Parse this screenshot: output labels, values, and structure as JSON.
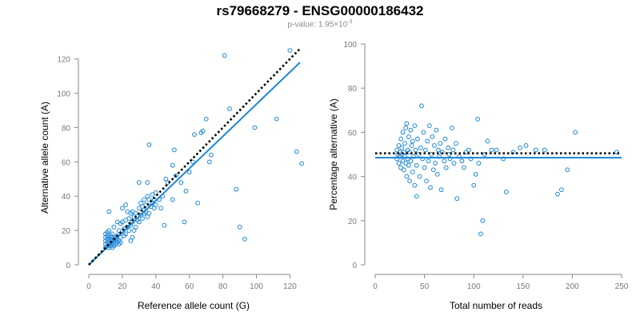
{
  "header": {
    "title": "rs79668279 - ENSG00000186432",
    "subtitle_prefix": "p-value: 1.95×10",
    "subtitle_exp": "-3"
  },
  "colors": {
    "points": "#1b86d6",
    "fit_line": "#1b86d6",
    "reference_line": "#000000",
    "axis": "#8a8a8a"
  },
  "chart_data": [
    {
      "type": "scatter",
      "title": "",
      "xlabel": "Reference allele count (G)",
      "ylabel": "Alternative allele count (A)",
      "xlim": [
        0,
        126
      ],
      "ylim": [
        0,
        125
      ],
      "xticks": [
        0,
        20,
        40,
        60,
        80,
        100,
        120
      ],
      "yticks": [
        0,
        20,
        40,
        60,
        80,
        100,
        120
      ],
      "grid": false,
      "fit_line": [
        [
          0,
          0
        ],
        [
          126,
          118
        ]
      ],
      "reference_line": [
        [
          0,
          0
        ],
        [
          126,
          126
        ]
      ],
      "points": [
        [
          10,
          10
        ],
        [
          10,
          12
        ],
        [
          10,
          14
        ],
        [
          10,
          16
        ],
        [
          10,
          18
        ],
        [
          11,
          11
        ],
        [
          11,
          13
        ],
        [
          11,
          15
        ],
        [
          11,
          17
        ],
        [
          11,
          19
        ],
        [
          12,
          10
        ],
        [
          12,
          12
        ],
        [
          12,
          14
        ],
        [
          12,
          16
        ],
        [
          12,
          20
        ],
        [
          12,
          31
        ],
        [
          13,
          11
        ],
        [
          13,
          13
        ],
        [
          13,
          15
        ],
        [
          13,
          17
        ],
        [
          14,
          10
        ],
        [
          14,
          12
        ],
        [
          14,
          14
        ],
        [
          14,
          16
        ],
        [
          14,
          18
        ],
        [
          15,
          11
        ],
        [
          15,
          13
        ],
        [
          15,
          15
        ],
        [
          15,
          22
        ],
        [
          16,
          12
        ],
        [
          16,
          14
        ],
        [
          16,
          16
        ],
        [
          17,
          13
        ],
        [
          17,
          15
        ],
        [
          17,
          17
        ],
        [
          17,
          25
        ],
        [
          18,
          12
        ],
        [
          18,
          14
        ],
        [
          18,
          20
        ],
        [
          19,
          13
        ],
        [
          19,
          16
        ],
        [
          19,
          24
        ],
        [
          20,
          25
        ],
        [
          20,
          33
        ],
        [
          21,
          17
        ],
        [
          21,
          21
        ],
        [
          22,
          18
        ],
        [
          22,
          26
        ],
        [
          22,
          35
        ],
        [
          23,
          22
        ],
        [
          23,
          31
        ],
        [
          24,
          20
        ],
        [
          24,
          27
        ],
        [
          25,
          23
        ],
        [
          25,
          30
        ],
        [
          25,
          14
        ],
        [
          26,
          16
        ],
        [
          26,
          25
        ],
        [
          26,
          31
        ],
        [
          27,
          28
        ],
        [
          27,
          20
        ],
        [
          28,
          22
        ],
        [
          28,
          30
        ],
        [
          29,
          26
        ],
        [
          30,
          25
        ],
        [
          30,
          33
        ],
        [
          30,
          48
        ],
        [
          31,
          29
        ],
        [
          31,
          36
        ],
        [
          32,
          27
        ],
        [
          32,
          34
        ],
        [
          33,
          30
        ],
        [
          33,
          38
        ],
        [
          34,
          31
        ],
        [
          34,
          35
        ],
        [
          35,
          28
        ],
        [
          35,
          40
        ],
        [
          35,
          48
        ],
        [
          36,
          30
        ],
        [
          36,
          38
        ],
        [
          36,
          70
        ],
        [
          37,
          34
        ],
        [
          38,
          36
        ],
        [
          38,
          41
        ],
        [
          39,
          33
        ],
        [
          39,
          38
        ],
        [
          40,
          35
        ],
        [
          40,
          42
        ],
        [
          42,
          38
        ],
        [
          43,
          33
        ],
        [
          44,
          40
        ],
        [
          45,
          23
        ],
        [
          46,
          50
        ],
        [
          47,
          48
        ],
        [
          50,
          38
        ],
        [
          50,
          58
        ],
        [
          51,
          67
        ],
        [
          52,
          52
        ],
        [
          55,
          48
        ],
        [
          57,
          25
        ],
        [
          58,
          43
        ],
        [
          60,
          54
        ],
        [
          62,
          60
        ],
        [
          63,
          76
        ],
        [
          65,
          36
        ],
        [
          67,
          77
        ],
        [
          68,
          78
        ],
        [
          70,
          85
        ],
        [
          72,
          60
        ],
        [
          73,
          64
        ],
        [
          81,
          122
        ],
        [
          84,
          91
        ],
        [
          88,
          44
        ],
        [
          90,
          22
        ],
        [
          93,
          15
        ],
        [
          99,
          80
        ],
        [
          112,
          85
        ],
        [
          120,
          125
        ],
        [
          124,
          66
        ],
        [
          127,
          59
        ]
      ]
    },
    {
      "type": "scatter",
      "title": "",
      "xlabel": "Total number of reads",
      "ylabel": "Percentage alternative (A)",
      "xlim": [
        0,
        250
      ],
      "ylim": [
        0,
        100
      ],
      "xticks": [
        0,
        50,
        100,
        150,
        200,
        250
      ],
      "yticks": [
        0,
        20,
        40,
        60,
        80,
        100
      ],
      "grid": false,
      "fit_line": [
        [
          0,
          48.5
        ],
        [
          250,
          48.5
        ]
      ],
      "reference_line": [
        [
          0,
          50.5
        ],
        [
          250,
          50.5
        ]
      ],
      "points": [
        [
          22,
          48
        ],
        [
          22,
          52
        ],
        [
          23,
          50
        ],
        [
          24,
          46
        ],
        [
          24,
          54
        ],
        [
          25,
          49
        ],
        [
          25,
          51
        ],
        [
          26,
          44
        ],
        [
          26,
          57
        ],
        [
          27,
          50
        ],
        [
          27,
          53
        ],
        [
          28,
          47
        ],
        [
          28,
          60
        ],
        [
          29,
          51
        ],
        [
          29,
          43
        ],
        [
          30,
          49
        ],
        [
          30,
          55
        ],
        [
          31,
          62
        ],
        [
          31,
          46
        ],
        [
          32,
          64
        ],
        [
          32,
          40
        ],
        [
          33,
          52
        ],
        [
          33,
          48
        ],
        [
          34,
          58
        ],
        [
          34,
          45
        ],
        [
          35,
          51
        ],
        [
          35,
          38
        ],
        [
          36,
          61
        ],
        [
          36,
          47
        ],
        [
          37,
          54
        ],
        [
          38,
          42
        ],
        [
          38,
          56
        ],
        [
          39,
          49
        ],
        [
          40,
          36
        ],
        [
          40,
          63
        ],
        [
          41,
          52
        ],
        [
          42,
          31
        ],
        [
          42,
          45
        ],
        [
          43,
          57
        ],
        [
          44,
          50
        ],
        [
          45,
          40
        ],
        [
          46,
          53
        ],
        [
          47,
          72
        ],
        [
          48,
          48
        ],
        [
          49,
          60
        ],
        [
          50,
          44
        ],
        [
          51,
          52
        ],
        [
          52,
          38
        ],
        [
          53,
          56
        ],
        [
          54,
          47
        ],
        [
          55,
          63
        ],
        [
          56,
          35
        ],
        [
          57,
          50
        ],
        [
          58,
          58
        ],
        [
          59,
          43
        ],
        [
          60,
          54
        ],
        [
          61,
          46
        ],
        [
          62,
          61
        ],
        [
          63,
          41
        ],
        [
          64,
          52
        ],
        [
          65,
          49
        ],
        [
          66,
          55
        ],
        [
          67,
          34
        ],
        [
          68,
          51
        ],
        [
          70,
          47
        ],
        [
          71,
          57
        ],
        [
          72,
          44
        ],
        [
          74,
          53
        ],
        [
          75,
          50
        ],
        [
          76,
          48
        ],
        [
          78,
          62
        ],
        [
          79,
          52
        ],
        [
          80,
          46
        ],
        [
          82,
          55
        ],
        [
          83,
          30
        ],
        [
          85,
          49
        ],
        [
          88,
          47
        ],
        [
          90,
          44
        ],
        [
          92,
          51
        ],
        [
          95,
          52
        ],
        [
          97,
          48
        ],
        [
          100,
          36
        ],
        [
          102,
          41
        ],
        [
          104,
          66
        ],
        [
          105,
          46
        ],
        [
          107,
          14
        ],
        [
          109,
          20
        ],
        [
          111,
          50
        ],
        [
          114,
          56
        ],
        [
          118,
          52
        ],
        [
          123,
          52
        ],
        [
          130,
          48
        ],
        [
          133,
          33
        ],
        [
          140,
          51
        ],
        [
          147,
          53
        ],
        [
          153,
          54
        ],
        [
          163,
          52
        ],
        [
          172,
          52
        ],
        [
          185,
          32
        ],
        [
          189,
          34
        ],
        [
          195,
          43
        ],
        [
          203,
          60
        ],
        [
          245,
          51
        ]
      ]
    }
  ]
}
